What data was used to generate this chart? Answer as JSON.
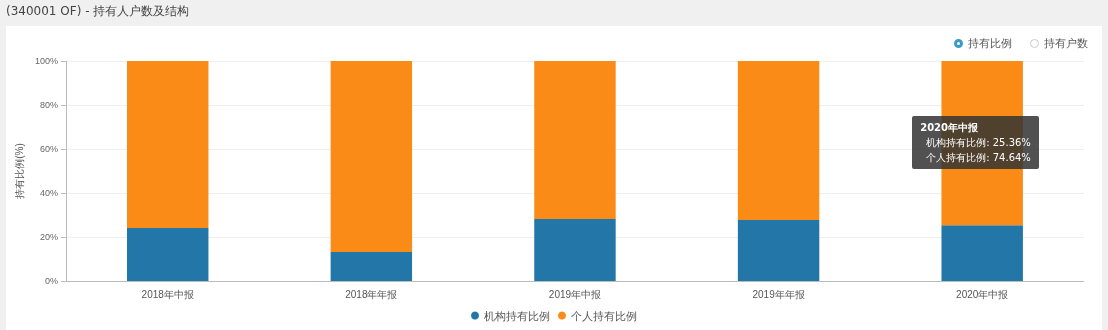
{
  "chart_data": {
    "type": "bar",
    "title": "(340001 OF) - 持有人户数及结构",
    "ylabel": "持有比例(%)",
    "categories": [
      "2018年中报",
      "2018年年报",
      "2019年中报",
      "2019年年报",
      "2020年中报"
    ],
    "stacked": true,
    "series": [
      {
        "name": "机构持有比例",
        "color": "#2277a8",
        "values": [
          24.1,
          13.2,
          28.2,
          27.7,
          25.36
        ]
      },
      {
        "name": "个人持有比例",
        "color": "#f98b16",
        "values": [
          75.9,
          86.8,
          71.8,
          72.3,
          74.64
        ]
      }
    ],
    "ylim": [
      0,
      100
    ],
    "yticks": [
      {
        "value": 0,
        "label": "0%"
      },
      {
        "value": 20,
        "label": "20%"
      },
      {
        "value": 40,
        "label": "40%"
      },
      {
        "value": 60,
        "label": "60%"
      },
      {
        "value": 80,
        "label": "80%"
      },
      {
        "value": 100,
        "label": "100%"
      }
    ],
    "grid": "y",
    "legend": "bottom",
    "annotations": [
      "持有比例",
      "持有户数",
      "2020年中报",
      "机构持有比例: 25.36%",
      "个人持有比例: 74.64%"
    ]
  }
}
